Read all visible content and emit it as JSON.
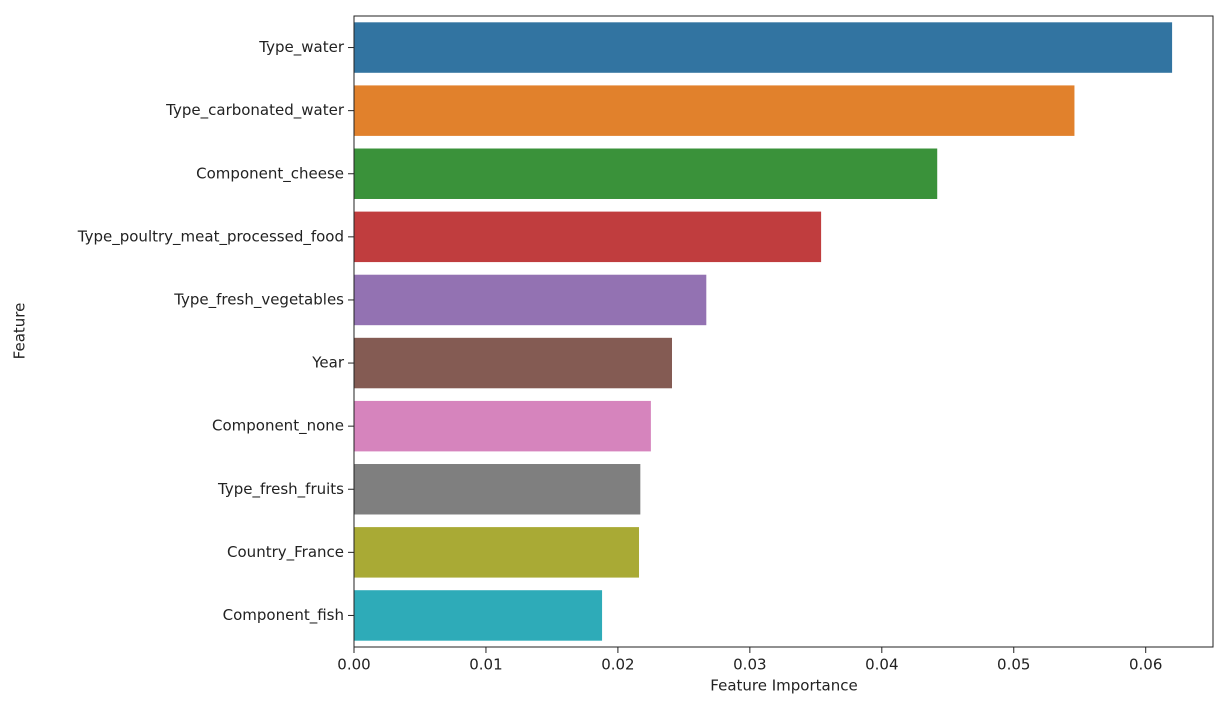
{
  "chart_data": {
    "type": "barh",
    "xlabel": "Feature Importance",
    "ylabel": "Feature",
    "categories": [
      "Type_water",
      "Type_carbonated_water",
      "Component_cheese",
      "Type_poultry_meat_processed_food",
      "Type_fresh_vegetables",
      "Year",
      "Component_none",
      "Type_fresh_fruits",
      "Country_France",
      "Component_fish"
    ],
    "values": [
      0.062,
      0.0546,
      0.0442,
      0.0354,
      0.0267,
      0.0241,
      0.0225,
      0.0217,
      0.0216,
      0.0188
    ],
    "colors": [
      "#3274a1",
      "#e1812c",
      "#3a923a",
      "#c03d3e",
      "#9372b2",
      "#845b53",
      "#d684bd",
      "#7f7f7f",
      "#a9aa35",
      "#2eabb8"
    ],
    "xlim": [
      0,
      0.0651
    ],
    "xticks": [
      {
        "value": 0,
        "label": "0.00"
      },
      {
        "value": 0.01,
        "label": "0.01"
      },
      {
        "value": 0.02,
        "label": "0.02"
      },
      {
        "value": 0.03,
        "label": "0.03"
      },
      {
        "value": 0.04,
        "label": "0.04"
      },
      {
        "value": 0.05,
        "label": "0.05"
      },
      {
        "value": 0.06,
        "label": "0.06"
      }
    ],
    "grid": false
  }
}
